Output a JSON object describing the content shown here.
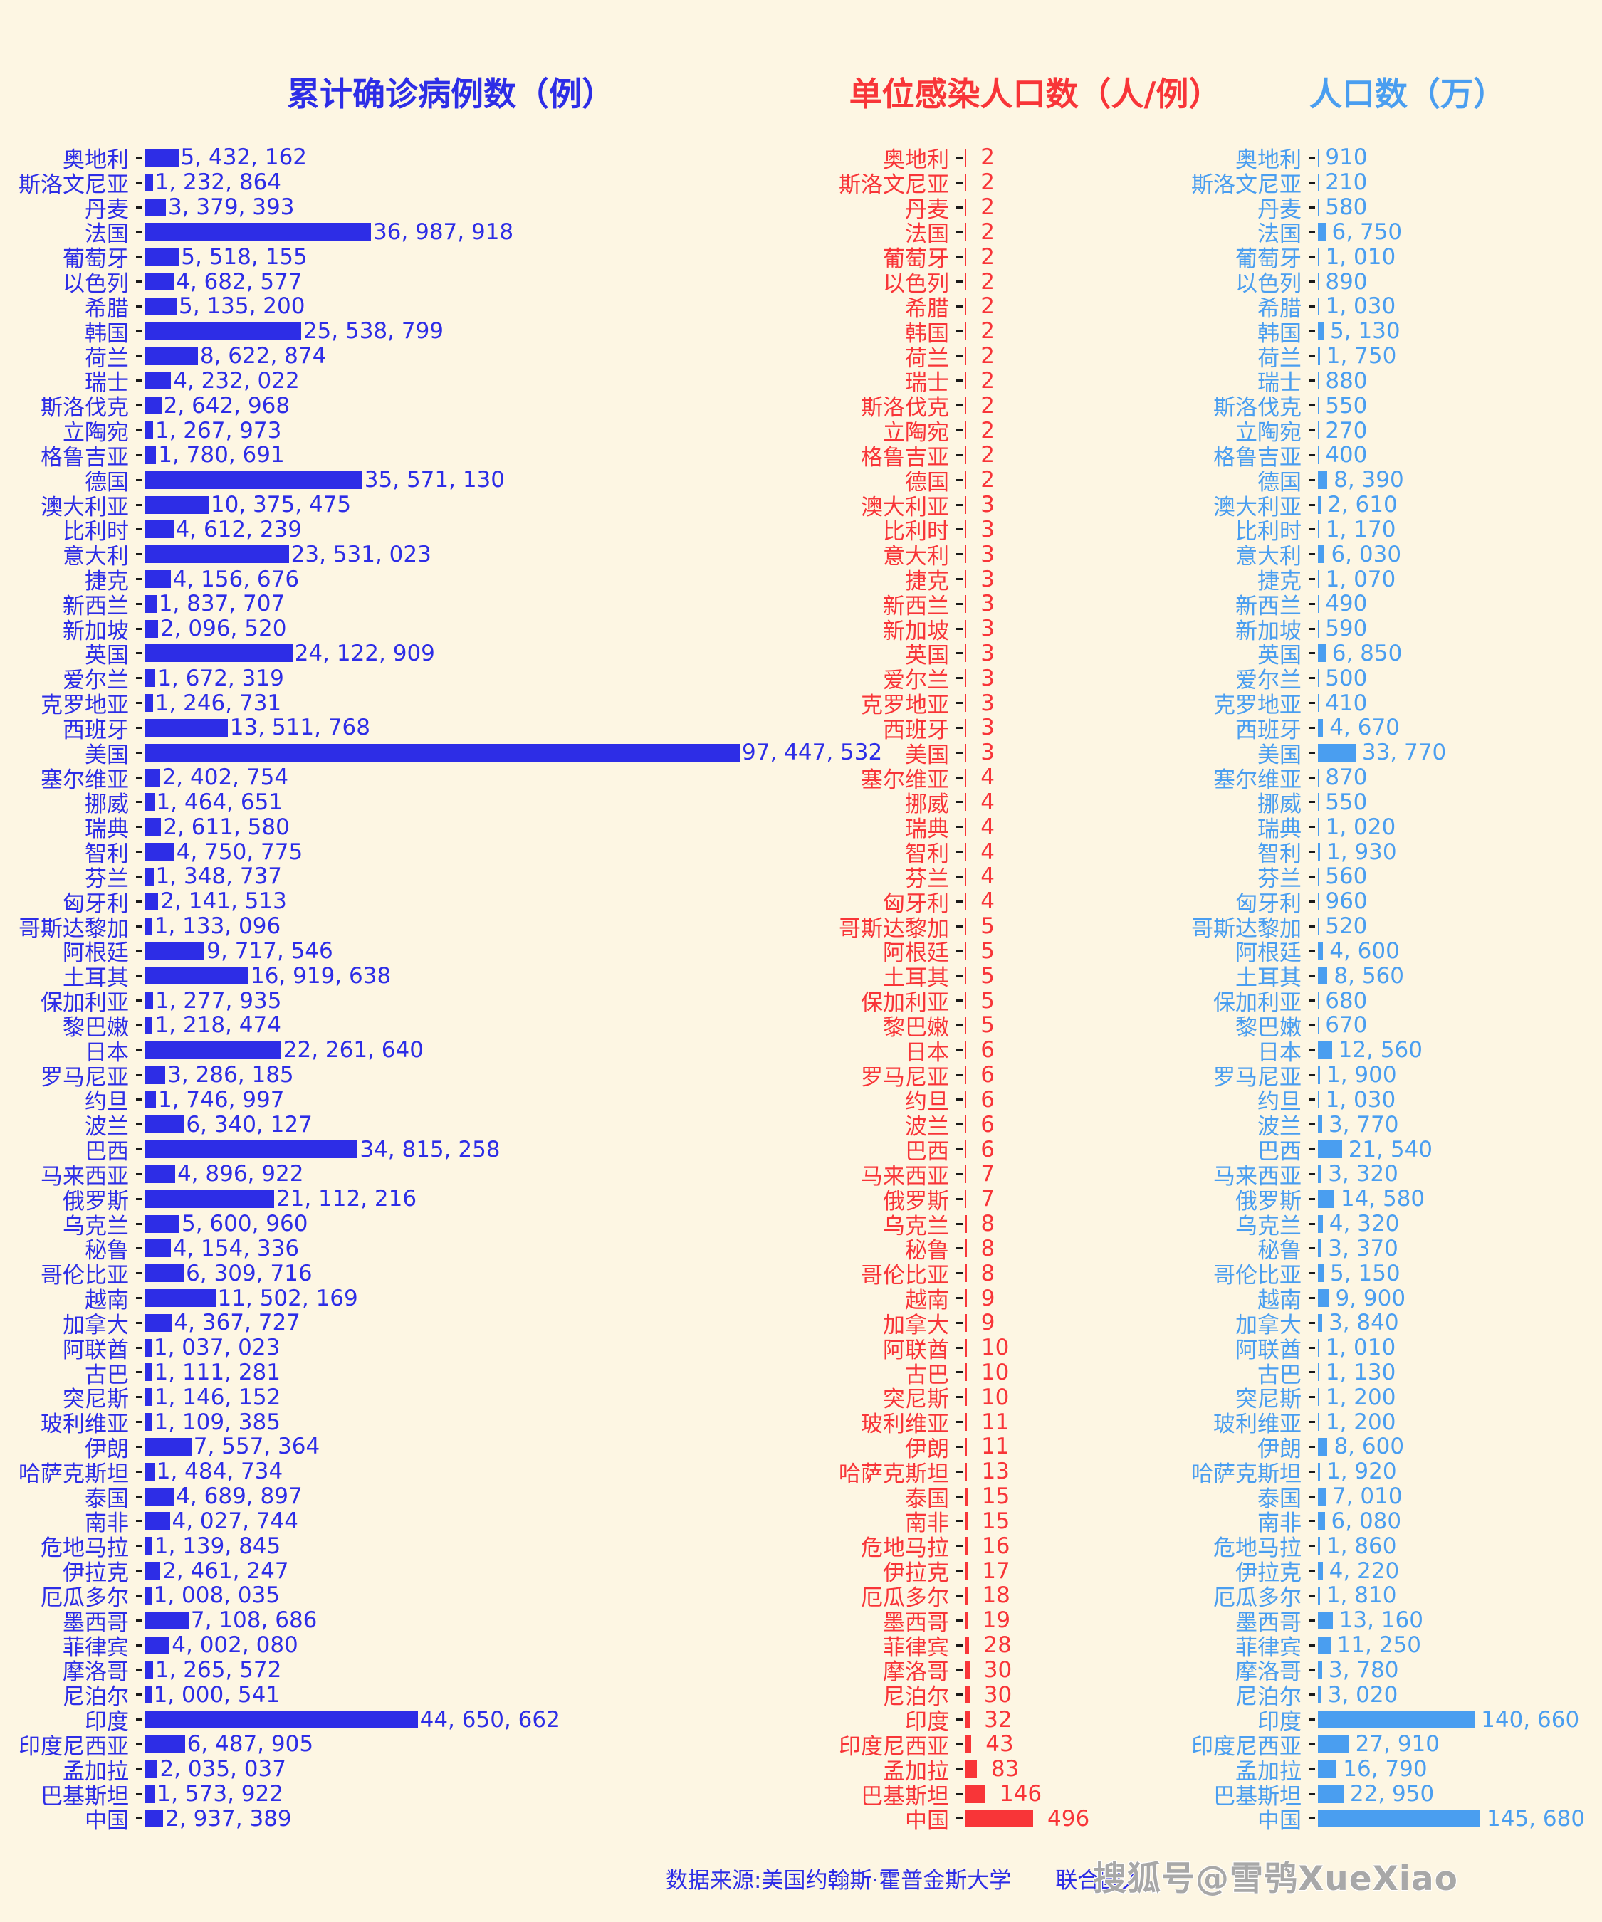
{
  "titles": {
    "cases": "累计确诊病例数（例）",
    "ratio": "单位感染人口数（人/例）",
    "population": "人口数（万）"
  },
  "footer": {
    "source": "数据来源:美国约翰斯·霍普金斯大学　　联合国人",
    "watermark": "搜狐号@雪鸮XueXiao"
  },
  "colors": {
    "background": "#fdf6e3",
    "cases_blue": "#2d2de6",
    "ratio_red": "#f83538",
    "population_blue": "#4a9ef0",
    "tick_black": "#1a1a1a",
    "watermark_gray": "#a8a8a8"
  },
  "chart_data": {
    "type": "bar",
    "orientation": "horizontal",
    "grid": false,
    "value_label_format": "comma-space",
    "categories": [
      "奥地利",
      "斯洛文尼亚",
      "丹麦",
      "法国",
      "葡萄牙",
      "以色列",
      "希腊",
      "韩国",
      "荷兰",
      "瑞士",
      "斯洛伐克",
      "立陶宛",
      "格鲁吉亚",
      "德国",
      "澳大利亚",
      "比利时",
      "意大利",
      "捷克",
      "新西兰",
      "新加坡",
      "英国",
      "爱尔兰",
      "克罗地亚",
      "西班牙",
      "美国",
      "塞尔维亚",
      "挪威",
      "瑞典",
      "智利",
      "芬兰",
      "匈牙利",
      "哥斯达黎加",
      "阿根廷",
      "土耳其",
      "保加利亚",
      "黎巴嫩",
      "日本",
      "罗马尼亚",
      "约旦",
      "波兰",
      "巴西",
      "马来西亚",
      "俄罗斯",
      "乌克兰",
      "秘鲁",
      "哥伦比亚",
      "越南",
      "加拿大",
      "阿联酋",
      "古巴",
      "突尼斯",
      "玻利维亚",
      "伊朗",
      "哈萨克斯坦",
      "泰国",
      "南非",
      "危地马拉",
      "伊拉克",
      "厄瓜多尔",
      "墨西哥",
      "菲律宾",
      "摩洛哥",
      "尼泊尔",
      "印度",
      "印度尼西亚",
      "孟加拉",
      "巴基斯坦",
      "中国"
    ],
    "series": [
      {
        "name": "累计确诊病例数（例）",
        "unit": "例",
        "color": "#2d2de6",
        "xlim": [
          0,
          100000000
        ],
        "values": [
          5432162,
          1232864,
          3379393,
          36987918,
          5518155,
          4682577,
          5135200,
          25538799,
          8622874,
          4232022,
          2642968,
          1267973,
          1780691,
          35571130,
          10375475,
          4612239,
          23531023,
          4156676,
          1837707,
          2096520,
          24122909,
          1672319,
          1246731,
          13511768,
          97447532,
          2402754,
          1464651,
          2611580,
          4750775,
          1348737,
          2141513,
          1133096,
          9717546,
          16919638,
          1277935,
          1218474,
          22261640,
          3286185,
          1746997,
          6340127,
          34815258,
          4896922,
          21112216,
          5600960,
          4154336,
          6309716,
          11502169,
          4367727,
          1037023,
          1111281,
          1146152,
          1109385,
          7557364,
          1484734,
          4689897,
          4027744,
          1139845,
          2461247,
          1008035,
          7108686,
          4002080,
          1265572,
          1000541,
          44650662,
          6487905,
          2035037,
          1573922,
          2937389
        ]
      },
      {
        "name": "单位感染人口数（人/例）",
        "unit": "人/例",
        "color": "#f83538",
        "xlim": [
          0,
          550
        ],
        "values": [
          2,
          2,
          2,
          2,
          2,
          2,
          2,
          2,
          2,
          2,
          2,
          2,
          2,
          2,
          3,
          3,
          3,
          3,
          3,
          3,
          3,
          3,
          3,
          3,
          3,
          4,
          4,
          4,
          4,
          4,
          4,
          5,
          5,
          5,
          5,
          5,
          6,
          6,
          6,
          6,
          6,
          7,
          7,
          8,
          8,
          8,
          9,
          9,
          10,
          10,
          10,
          11,
          11,
          13,
          15,
          15,
          16,
          17,
          18,
          19,
          28,
          30,
          30,
          32,
          43,
          83,
          146,
          496
        ]
      },
      {
        "name": "人口数（万）",
        "unit": "万",
        "color": "#4a9ef0",
        "xlim": [
          0,
          160000
        ],
        "values": [
          910,
          210,
          580,
          6750,
          1010,
          890,
          1030,
          5130,
          1750,
          880,
          550,
          270,
          400,
          8390,
          2610,
          1170,
          6030,
          1070,
          490,
          590,
          6850,
          500,
          410,
          4670,
          33770,
          870,
          550,
          1020,
          1930,
          560,
          960,
          520,
          4600,
          8560,
          680,
          670,
          12560,
          1900,
          1030,
          3770,
          21540,
          3320,
          14580,
          4320,
          3370,
          5150,
          9900,
          3840,
          1010,
          1130,
          1200,
          1200,
          8600,
          1920,
          7010,
          6080,
          1860,
          4220,
          1810,
          13160,
          11250,
          3780,
          3020,
          140660,
          27910,
          16790,
          22950,
          145680
        ]
      }
    ]
  }
}
